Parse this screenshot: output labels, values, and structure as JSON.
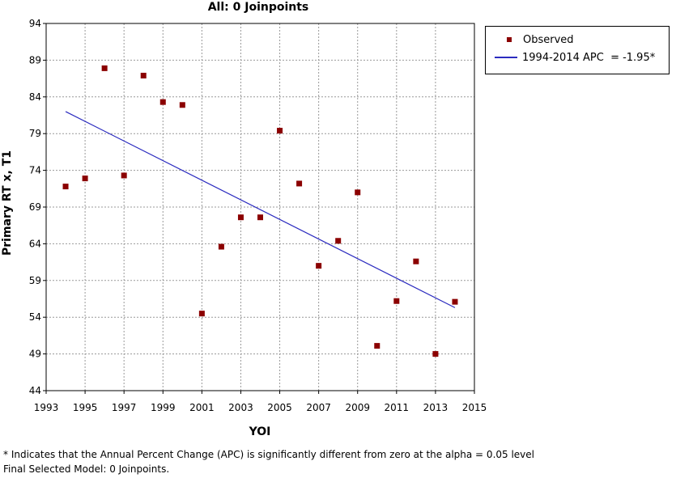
{
  "chart_data": {
    "type": "scatter",
    "title": "All: 0 Joinpoints",
    "xlabel": "YOI",
    "ylabel": "Primary RT x, T1",
    "xlim": [
      1993,
      2015
    ],
    "ylim": [
      44,
      94
    ],
    "xticks": [
      "1993",
      "1995",
      "1997",
      "1999",
      "2001",
      "2003",
      "2005",
      "2007",
      "2009",
      "2011",
      "2013",
      "2015"
    ],
    "yticks": [
      "94",
      "89",
      "84",
      "79",
      "74",
      "69",
      "64",
      "59",
      "54",
      "49",
      "44"
    ],
    "grid": true,
    "series": [
      {
        "name": "Observed",
        "kind": "points",
        "color": "#8b0000",
        "x": [
          1994,
          1995,
          1996,
          1997,
          1998,
          1999,
          2000,
          2001,
          2002,
          2003,
          2004,
          2005,
          2006,
          2007,
          2008,
          2009,
          2010,
          2011,
          2012,
          2013,
          2014
        ],
        "y": [
          71.8,
          72.9,
          87.9,
          73.3,
          86.9,
          83.3,
          82.9,
          54.5,
          63.6,
          67.6,
          67.6,
          79.4,
          72.2,
          61.0,
          64.4,
          71.0,
          50.1,
          56.2,
          61.6,
          49.0,
          56.1
        ]
      },
      {
        "name": "1994-2014 APC  = -1.95*",
        "kind": "line",
        "color": "#2b2bbf",
        "x": [
          1994,
          2014
        ],
        "y": [
          82.0,
          55.3
        ]
      }
    ],
    "legend_position": "right"
  },
  "legend": {
    "observed_label": "Observed",
    "fit_label": "1994-2014 APC  = -1.95*"
  },
  "footnotes": {
    "line1": "* Indicates that the Annual Percent Change (APC) is significantly different from zero at the alpha = 0.05 level",
    "line2": "Final Selected Model: 0 Joinpoints."
  }
}
